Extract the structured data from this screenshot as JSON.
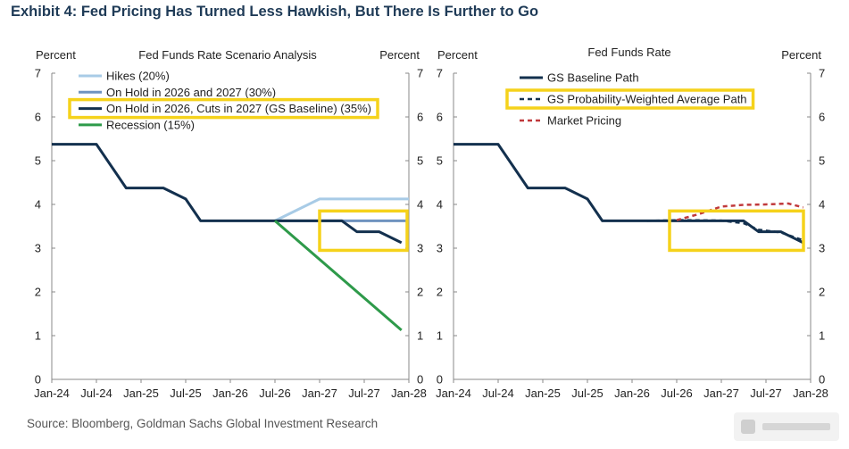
{
  "exhibit_title": "Exhibit 4: Fed Pricing Has Turned Less Hawkish, But There Is Further to Go",
  "source": "Source: Bloomberg, Goldman Sachs Global Investment Research",
  "colors": {
    "hikes": "#a8cbe6",
    "on_hold": "#6f93bf",
    "gs_baseline": "#13304e",
    "recession": "#2e9a4a",
    "market_pricing": "#c0393b",
    "highlight": "#f5d21b",
    "axis": "#888888"
  },
  "chart_data": [
    {
      "type": "line",
      "title": "Fed Funds Rate Scenario Analysis",
      "left_unit": "Percent",
      "right_unit": "Percent",
      "x_ticks": [
        "Jan-24",
        "Jul-24",
        "Jan-25",
        "Jul-25",
        "Jan-26",
        "Jul-26",
        "Jan-27",
        "Jul-27",
        "Jan-28"
      ],
      "xlim": [
        "2024-01",
        "2028-01"
      ],
      "ylim": [
        0,
        7
      ],
      "y_ticks": [
        "0",
        "1",
        "2",
        "3",
        "4",
        "5",
        "6",
        "7"
      ],
      "grid": false,
      "legend": "top-left",
      "series": [
        {
          "name": "Hikes (20%)",
          "color_key": "hikes",
          "dash": false,
          "x": [
            "2026-07",
            "2027-01",
            "2028-01"
          ],
          "y": [
            3.625,
            4.125,
            4.125
          ]
        },
        {
          "name": "On Hold in 2026 and 2027 (30%)",
          "color_key": "on_hold",
          "dash": false,
          "x": [
            "2026-07",
            "2028-01"
          ],
          "y": [
            3.625,
            3.625
          ]
        },
        {
          "name": "On Hold in 2026, Cuts in 2027 (GS Baseline) (35%)",
          "color_key": "gs_baseline",
          "dash": false,
          "highlighted": true,
          "x": [
            "2024-01",
            "2024-07",
            "2024-11",
            "2025-04",
            "2025-07",
            "2025-09",
            "2026-03",
            "2027-04",
            "2027-06",
            "2027-09",
            "2027-12"
          ],
          "y": [
            5.375,
            5.375,
            4.375,
            4.375,
            4.125,
            3.625,
            3.625,
            3.625,
            3.375,
            3.375,
            3.125
          ]
        },
        {
          "name": "Recession (15%)",
          "color_key": "recession",
          "dash": false,
          "x": [
            "2026-07",
            "2027-12"
          ],
          "y": [
            3.625,
            1.125
          ]
        }
      ],
      "highlight_box": {
        "x": [
          "2027-01",
          "2028-01"
        ],
        "y": [
          2.95,
          3.85
        ]
      }
    },
    {
      "type": "line",
      "title": "Fed Funds Rate",
      "left_unit": "Percent",
      "right_unit": "Percent",
      "x_ticks": [
        "Jan-24",
        "Jul-24",
        "Jan-25",
        "Jul-25",
        "Jan-26",
        "Jul-26",
        "Jan-27",
        "Jul-27",
        "Jan-28"
      ],
      "xlim": [
        "2024-01",
        "2028-01"
      ],
      "ylim": [
        0,
        7
      ],
      "y_ticks": [
        "0",
        "1",
        "2",
        "3",
        "4",
        "5",
        "6",
        "7"
      ],
      "grid": false,
      "legend": "top-left",
      "series": [
        {
          "name": "GS Baseline Path",
          "color_key": "gs_baseline",
          "dash": false,
          "x": [
            "2024-01",
            "2024-07",
            "2024-11",
            "2025-04",
            "2025-07",
            "2025-09",
            "2026-03",
            "2026-08",
            "2027-01",
            "2027-04",
            "2027-06",
            "2027-09",
            "2027-12"
          ],
          "y": [
            5.375,
            5.375,
            4.375,
            4.375,
            4.125,
            3.625,
            3.625,
            3.625,
            3.625,
            3.625,
            3.375,
            3.375,
            3.125
          ]
        },
        {
          "name": "GS Probability-Weighted Average Path",
          "color_key": "gs_baseline",
          "dash": true,
          "highlighted": true,
          "x": [
            "2026-03",
            "2026-08",
            "2027-01",
            "2027-04",
            "2027-06",
            "2027-09",
            "2027-12"
          ],
          "y": [
            3.625,
            3.64,
            3.63,
            3.57,
            3.42,
            3.36,
            3.18
          ]
        },
        {
          "name": "Market Pricing",
          "color_key": "market_pricing",
          "dash": true,
          "x": [
            "2026-07",
            "2026-10",
            "2027-01",
            "2027-04",
            "2027-07",
            "2027-10",
            "2027-12"
          ],
          "y": [
            3.64,
            3.78,
            3.95,
            3.99,
            4.0,
            4.02,
            3.93
          ]
        }
      ],
      "highlight_box": {
        "x": [
          "2026-07",
          "2028-01"
        ],
        "y": [
          2.95,
          3.85
        ]
      }
    }
  ]
}
